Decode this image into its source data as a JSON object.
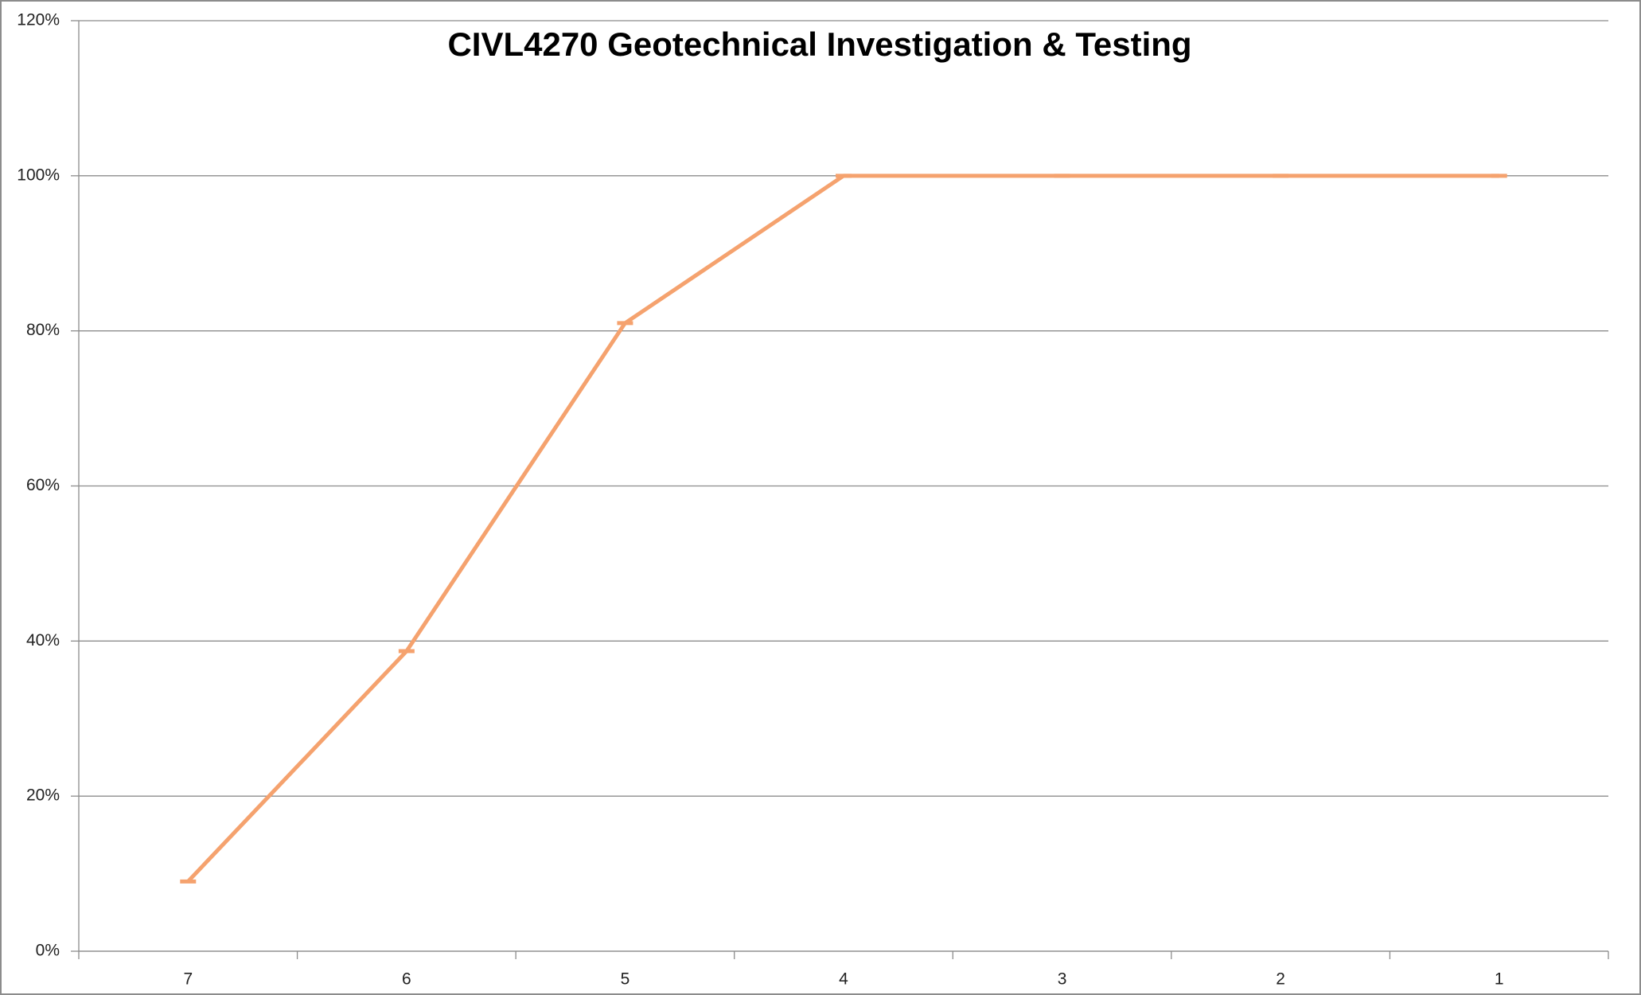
{
  "chart_data": {
    "type": "line",
    "title": "CIVL4270 Geotechnical Investigation & Testing",
    "categories": [
      "7",
      "6",
      "5",
      "4",
      "3",
      "2",
      "1"
    ],
    "series": [
      {
        "name": "",
        "color": "#f5a26e",
        "values": [
          9,
          38.7,
          81,
          100,
          100,
          100,
          100
        ]
      }
    ],
    "ylim": [
      0,
      120
    ],
    "yticks": [
      {
        "value": 0,
        "label": "0%"
      },
      {
        "value": 20,
        "label": "20%"
      },
      {
        "value": 40,
        "label": "40%"
      },
      {
        "value": 60,
        "label": "60%"
      },
      {
        "value": 80,
        "label": "80%"
      },
      {
        "value": 100,
        "label": "100%"
      },
      {
        "value": 120,
        "label": "120%"
      }
    ],
    "grid": true
  }
}
